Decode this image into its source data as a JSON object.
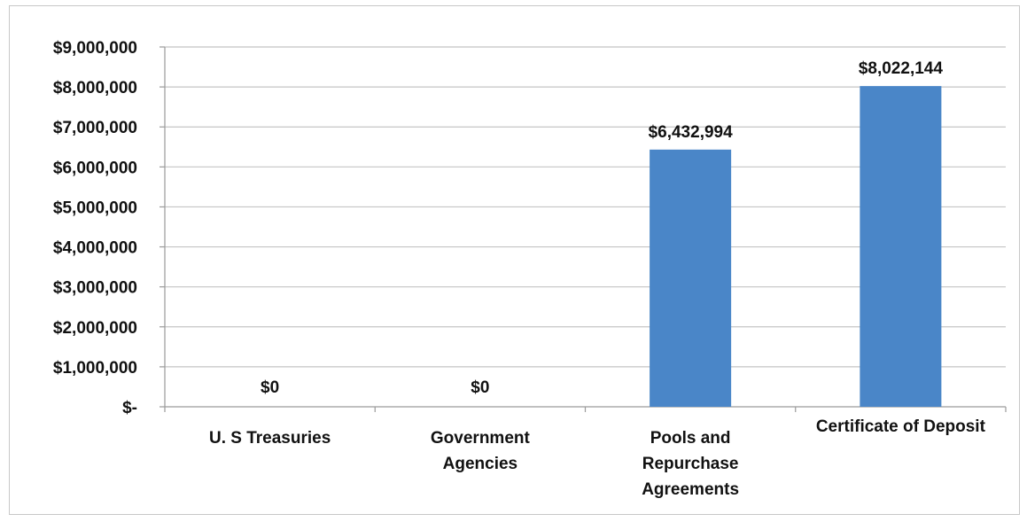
{
  "chart_data": {
    "type": "bar",
    "categories": [
      "U. S Treasuries",
      "Government Agencies",
      "Pools and Repurchase Agreements",
      "Certificate of Deposit"
    ],
    "category_lines": [
      [
        "U. S Treasuries"
      ],
      [
        "Government",
        "Agencies"
      ],
      [
        "Pools and",
        "Repurchase",
        "Agreements"
      ],
      [
        "Certificate of Deposit"
      ]
    ],
    "values": [
      0,
      0,
      6432994,
      8022144
    ],
    "data_labels": [
      "$0",
      "$0",
      "$6,432,994",
      "$8,022,144"
    ],
    "ylim": [
      0,
      9000000
    ],
    "y_ticks": [
      0,
      1000000,
      2000000,
      3000000,
      4000000,
      5000000,
      6000000,
      7000000,
      8000000,
      9000000
    ],
    "y_tick_labels": [
      "$-",
      "$1,000,000",
      "$2,000,000",
      "$3,000,000",
      "$4,000,000",
      "$5,000,000",
      "$6,000,000",
      "$7,000,000",
      "$8,000,000",
      "$9,000,000"
    ],
    "grid": true,
    "legend": "none",
    "title": "",
    "xlabel": "",
    "ylabel": "",
    "colors": {
      "bar": "#4a86c8",
      "grid": "#c4c4c4",
      "axis": "#9a9a9a"
    }
  }
}
